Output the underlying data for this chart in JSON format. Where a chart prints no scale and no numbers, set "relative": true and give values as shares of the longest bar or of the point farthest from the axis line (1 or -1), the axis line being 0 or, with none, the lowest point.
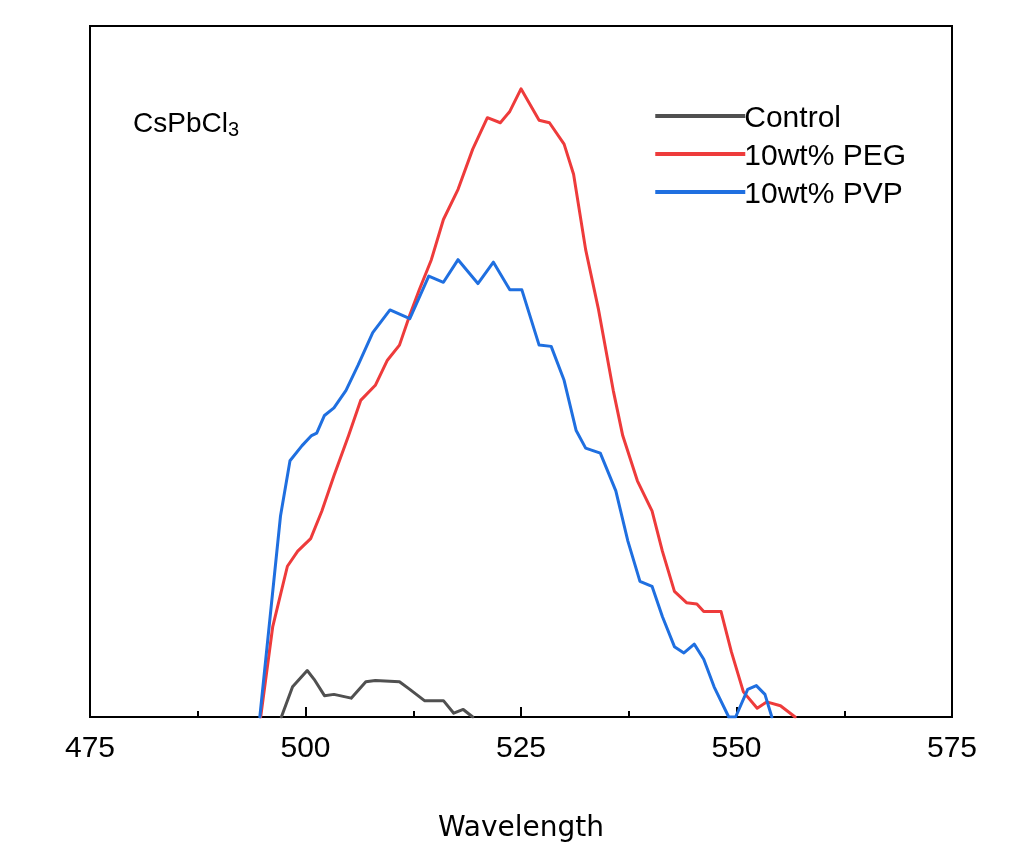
{
  "chart_data": {
    "type": "line",
    "relative": true,
    "xlabel": "Wavelength",
    "annotations": [
      "CsPbCl$_{3}$"
    ],
    "xlim": [
      475,
      575
    ],
    "xticks": [
      475,
      500,
      525,
      550,
      575
    ],
    "legend": "top right",
    "grid": false,
    "marker": "none",
    "line_style": "solid",
    "series": [
      {
        "name": "Control",
        "color": "#505050",
        "x": [
          497.2,
          498.5,
          500.2,
          501.0,
          502.2,
          503.3,
          505.3,
          507.0,
          508.1,
          510.9,
          512.1,
          513.8,
          516.0,
          517.2,
          518.3,
          519.4
        ],
        "values": [
          0,
          0.048,
          0.074,
          0.06,
          0.034,
          0.036,
          0.03,
          0.056,
          0.058,
          0.056,
          0.044,
          0.026,
          0.026,
          0.006,
          0.012,
          0
        ]
      },
      {
        "name": "10wt% PEG",
        "color": "#ee3b3b",
        "x": [
          494.8,
          496.2,
          497.9,
          499.1,
          500.6,
          501.9,
          503.3,
          505.0,
          506.4,
          508.1,
          509.5,
          510.9,
          512.1,
          513.2,
          514.6,
          516.0,
          517.7,
          519.4,
          521.1,
          522.6,
          523.7,
          525.0,
          527.1,
          528.3,
          530.0,
          531.1,
          532.5,
          534.0,
          535.7,
          536.8,
          538.5,
          540.2,
          541.4,
          542.8,
          544.2,
          545.4,
          546.2,
          548.2,
          549.4,
          550.8,
          552.4,
          553.5,
          555.1,
          556.8
        ],
        "values": [
          0,
          0.144,
          0.24,
          0.264,
          0.284,
          0.328,
          0.384,
          0.448,
          0.504,
          0.528,
          0.568,
          0.592,
          0.64,
          0.68,
          0.728,
          0.792,
          0.84,
          0.904,
          0.954,
          0.946,
          0.964,
          1,
          0.95,
          0.946,
          0.912,
          0.864,
          0.744,
          0.648,
          0.52,
          0.448,
          0.376,
          0.328,
          0.264,
          0.2,
          0.182,
          0.18,
          0.168,
          0.168,
          0.104,
          0.04,
          0.014,
          0.024,
          0.018,
          0
        ]
      },
      {
        "name": "10wt% PVP",
        "color": "#1f6fe0",
        "x": [
          494.7,
          495.9,
          497.1,
          498.2,
          499.6,
          500.7,
          501.3,
          502.2,
          503.3,
          504.7,
          506.1,
          507.8,
          509.8,
          512.1,
          514.3,
          516.0,
          517.7,
          520.0,
          521.8,
          523.7,
          525.1,
          527.1,
          528.5,
          530.0,
          531.4,
          532.5,
          534.2,
          536.0,
          537.4,
          538.8,
          540.2,
          541.4,
          542.8,
          543.9,
          545.1,
          546.2,
          547.4,
          549.1,
          549.9,
          551.3,
          552.3,
          553.3,
          554.1
        ],
        "values": [
          0,
          0.16,
          0.32,
          0.408,
          0.432,
          0.448,
          0.452,
          0.48,
          0.492,
          0.52,
          0.56,
          0.612,
          0.648,
          0.634,
          0.702,
          0.692,
          0.728,
          0.69,
          0.724,
          0.68,
          0.68,
          0.592,
          0.59,
          0.536,
          0.456,
          0.428,
          0.42,
          0.36,
          0.28,
          0.216,
          0.208,
          0.16,
          0.112,
          0.102,
          0.116,
          0.092,
          0.048,
          0,
          0,
          0.044,
          0.05,
          0.036,
          0
        ]
      }
    ]
  }
}
